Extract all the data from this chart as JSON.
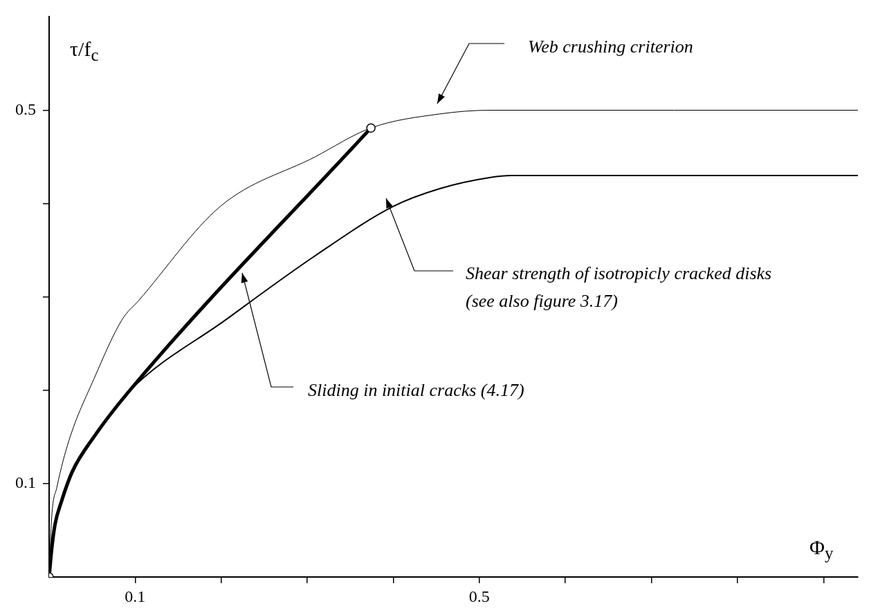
{
  "chart_data": {
    "type": "line",
    "xlabel": "Φ$_{y}$",
    "ylabel": "τ/f$_{c}$",
    "xlim": [
      0,
      0.94
    ],
    "ylim": [
      0,
      0.6
    ],
    "xticks": [
      0.1,
      {
        "value": 0.2,
        "label": null
      },
      {
        "value": 0.3,
        "label": null
      },
      {
        "value": 0.4,
        "label": null
      },
      0.5,
      {
        "value": 0.6,
        "label": null
      },
      {
        "value": 0.7,
        "label": null
      },
      {
        "value": 0.8,
        "label": null
      },
      {
        "value": 0.9,
        "label": null
      }
    ],
    "yticks": [
      0.1,
      {
        "value": 0.2,
        "label": null
      },
      {
        "value": 0.3,
        "label": null
      },
      {
        "value": 0.4,
        "label": null
      },
      0.5
    ],
    "grid": false,
    "legend": false,
    "marker": "none",
    "line_style": "solid",
    "series": [
      {
        "color": "#000000",
        "x": [
          0,
          0.003,
          0.009,
          0.023,
          0.052,
          0.085,
          0.104,
          0.199,
          0.309,
          0.374,
          0.454,
          0.513,
          0.94
        ],
        "values": [
          0,
          0.064,
          0.096,
          0.146,
          0.212,
          0.276,
          0.296,
          0.397,
          0.45,
          0.481,
          0.496,
          0.5,
          0.5
        ]
      },
      {
        "color": "#000000",
        "x": [
          0,
          0.003,
          0.007,
          0.014,
          0.027,
          0.052,
          0.092,
          0.206,
          0.309,
          0.4,
          0.454,
          0.513,
          0.537,
          0.94
        ],
        "values": [
          0,
          0.03,
          0.057,
          0.08,
          0.113,
          0.15,
          0.198,
          0.276,
          0.344,
          0.397,
          0.416,
          0.428,
          0.43,
          0.43
        ]
      },
      {
        "color": "#000000",
        "x": [
          0,
          0.003,
          0.007,
          0.014,
          0.027,
          0.052,
          0.092,
          0.374
        ],
        "values": [
          0,
          0.03,
          0.057,
          0.08,
          0.113,
          0.15,
          0.198,
          0.481
        ]
      },
      {
        "type": "scatter",
        "marker": "circle",
        "color": "#000000",
        "x": [
          0,
          0.374
        ],
        "values": [
          0,
          0.481
        ]
      }
    ],
    "annotations": [
      "Web crushing criterion",
      "Shear strength of isotropicly cracked disks (see also figure 3.17)",
      "Sliding in initial cracks (4.17)"
    ]
  }
}
